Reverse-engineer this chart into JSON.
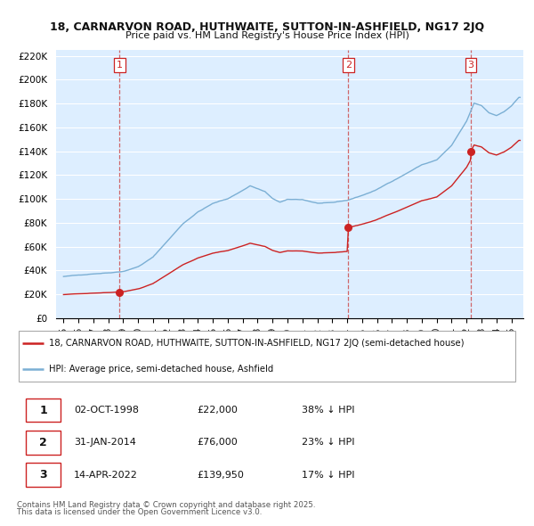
{
  "title1": "18, CARNARVON ROAD, HUTHWAITE, SUTTON-IN-ASHFIELD, NG17 2JQ",
  "title2": "Price paid vs. HM Land Registry's House Price Index (HPI)",
  "legend_label_red": "18, CARNARVON ROAD, HUTHWAITE, SUTTON-IN-ASHFIELD, NG17 2JQ (semi-detached house)",
  "legend_label_blue": "HPI: Average price, semi-detached house, Ashfield",
  "footer1": "Contains HM Land Registry data © Crown copyright and database right 2025.",
  "footer2": "This data is licensed under the Open Government Licence v3.0.",
  "sales": [
    {
      "date_year": 1998.75,
      "price": 22000,
      "label": "1"
    },
    {
      "date_year": 2014.08,
      "price": 76000,
      "label": "2"
    },
    {
      "date_year": 2022.28,
      "price": 139950,
      "label": "3"
    }
  ],
  "table_rows": [
    {
      "num": "1",
      "date": "02-OCT-1998",
      "price": "£22,000",
      "pct": "38% ↓ HPI"
    },
    {
      "num": "2",
      "date": "31-JAN-2014",
      "price": "£76,000",
      "pct": "23% ↓ HPI"
    },
    {
      "num": "3",
      "date": "14-APR-2022",
      "price": "£139,950",
      "pct": "17% ↓ HPI"
    }
  ],
  "ylim": [
    0,
    225000
  ],
  "xlim_start": 1994.5,
  "xlim_end": 2025.8,
  "yticks": [
    0,
    20000,
    40000,
    60000,
    80000,
    100000,
    120000,
    140000,
    160000,
    180000,
    200000,
    220000
  ],
  "ytick_labels": [
    "£0",
    "£20K",
    "£40K",
    "£60K",
    "£80K",
    "£100K",
    "£120K",
    "£140K",
    "£160K",
    "£180K",
    "£200K",
    "£220K"
  ],
  "hpi_color": "#7bafd4",
  "sale_color": "#cc2222",
  "vline_color": "#cc4444",
  "bg_chart": "#ddeeff",
  "bg_color": "#ffffff",
  "grid_color": "#ffffff"
}
